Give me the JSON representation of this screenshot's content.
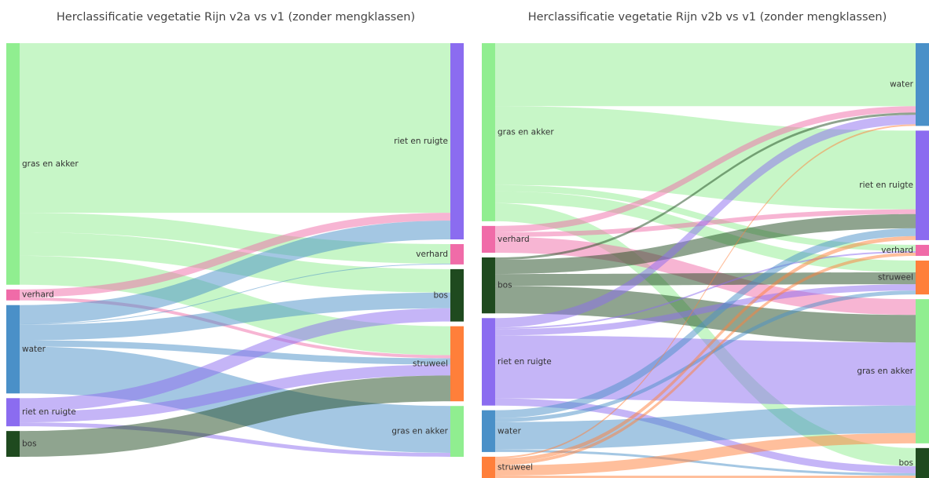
{
  "chart_data": [
    {
      "type": "sankey",
      "title": "Herclassificatie vegetatie Rijn v2a vs v1 (zonder mengklassen)",
      "nodes": [
        {
          "label": "gras en akker",
          "color": "#90ee90"
        },
        {
          "label": "verhard",
          "color": "#f06ba8"
        },
        {
          "label": "water",
          "color": "#4a90c8"
        },
        {
          "label": "riet en ruigte",
          "color": "#8b6cf0"
        },
        {
          "label": "bos",
          "color": "#1f4a1f"
        },
        {
          "label": "riet en ruigte",
          "color": "#8b6cf0"
        },
        {
          "label": "verhard",
          "color": "#f06ba8"
        },
        {
          "label": "bos",
          "color": "#1f4a1f"
        },
        {
          "label": "struweel",
          "color": "#ff7f3a"
        },
        {
          "label": "gras en akker",
          "color": "#90ee90"
        }
      ],
      "links": {
        "source": [
          0,
          0,
          0,
          0,
          1,
          1,
          2,
          2,
          2,
          2,
          2,
          3,
          3,
          3,
          4
        ],
        "target": [
          5,
          6,
          7,
          8,
          5,
          8,
          5,
          6,
          7,
          8,
          9,
          7,
          8,
          9,
          8
        ],
        "values": [
          217,
          25,
          30,
          37,
          10,
          4,
          24,
          1,
          20,
          8,
          60,
          17,
          14,
          5,
          33
        ]
      }
    },
    {
      "type": "sankey",
      "title": "Herclassificatie vegetatie Rijn v2b vs v1 (zonder mengklassen)",
      "nodes": [
        {
          "label": "gras en akker",
          "color": "#90ee90"
        },
        {
          "label": "verhard",
          "color": "#f06ba8"
        },
        {
          "label": "bos",
          "color": "#1f4a1f"
        },
        {
          "label": "riet en ruigte",
          "color": "#8b6cf0"
        },
        {
          "label": "water",
          "color": "#4a90c8"
        },
        {
          "label": "struweel",
          "color": "#ff7f3a"
        },
        {
          "label": "water",
          "color": "#4a90c8"
        },
        {
          "label": "riet en ruigte",
          "color": "#8b6cf0"
        },
        {
          "label": "verhard",
          "color": "#f06ba8"
        },
        {
          "label": "struweel",
          "color": "#ff7f3a"
        },
        {
          "label": "gras en akker",
          "color": "#90ee90"
        },
        {
          "label": "bos",
          "color": "#1f4a1f"
        }
      ],
      "links": {
        "source": [
          0,
          0,
          0,
          0,
          0,
          1,
          1,
          1,
          2,
          2,
          2,
          2,
          3,
          3,
          3,
          3,
          3,
          4,
          4,
          4,
          4,
          5,
          5,
          5,
          5,
          5
        ],
        "target": [
          6,
          7,
          8,
          9,
          11,
          6,
          7,
          10,
          6,
          7,
          9,
          10,
          6,
          8,
          9,
          10,
          11,
          7,
          9,
          10,
          11,
          6,
          7,
          8,
          10,
          11
        ],
        "values": [
          80,
          100,
          8,
          15,
          23,
          8,
          6,
          20,
          3,
          18,
          15,
          35,
          12,
          2,
          8,
          80,
          9,
          10,
          5,
          35,
          3,
          2,
          5,
          4,
          13,
          3
        ]
      }
    }
  ]
}
